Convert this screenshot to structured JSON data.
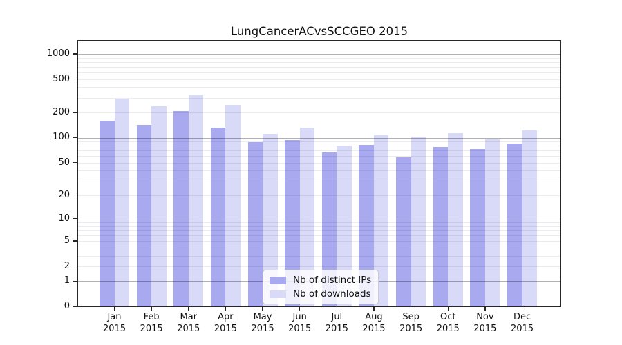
{
  "title": "LungCancerACvsSCCGEO 2015",
  "chart_data": {
    "type": "bar",
    "title": "LungCancerACvsSCCGEO 2015",
    "categories": [
      "Jan 2015",
      "Feb 2015",
      "Mar 2015",
      "Apr 2015",
      "May 2015",
      "Jun 2015",
      "Jul 2015",
      "Aug 2015",
      "Sep 2015",
      "Oct 2015",
      "Nov 2015",
      "Dec 2015"
    ],
    "series": [
      {
        "name": "Nb of distinct IPs",
        "color": "#a9a9f0",
        "values": [
          158,
          142,
          207,
          131,
          88,
          94,
          66,
          82,
          58,
          77,
          73,
          85
        ]
      },
      {
        "name": "Nb of downloads",
        "color": "#d9d9f8",
        "values": [
          290,
          238,
          322,
          245,
          112,
          133,
          80,
          106,
          103,
          114,
          96,
          121
        ]
      }
    ],
    "xlabel": "",
    "ylabel": "",
    "y_axis": {
      "scale": "log10(1+value)",
      "tick_labels": [
        "1000",
        "500",
        "200",
        "100",
        "50",
        "20",
        "10",
        "5",
        "2",
        "1",
        "0"
      ],
      "tick_values": [
        1000,
        500,
        200,
        100,
        50,
        20,
        10,
        5,
        2,
        1,
        0
      ],
      "ylim": [
        0,
        1400
      ]
    },
    "grid": {
      "enabled": true,
      "major_line_values": [
        1,
        10,
        100,
        1000
      ],
      "minor_line_rule": "2-9 within each decade"
    },
    "legend_position": "lower center, inside axes"
  }
}
